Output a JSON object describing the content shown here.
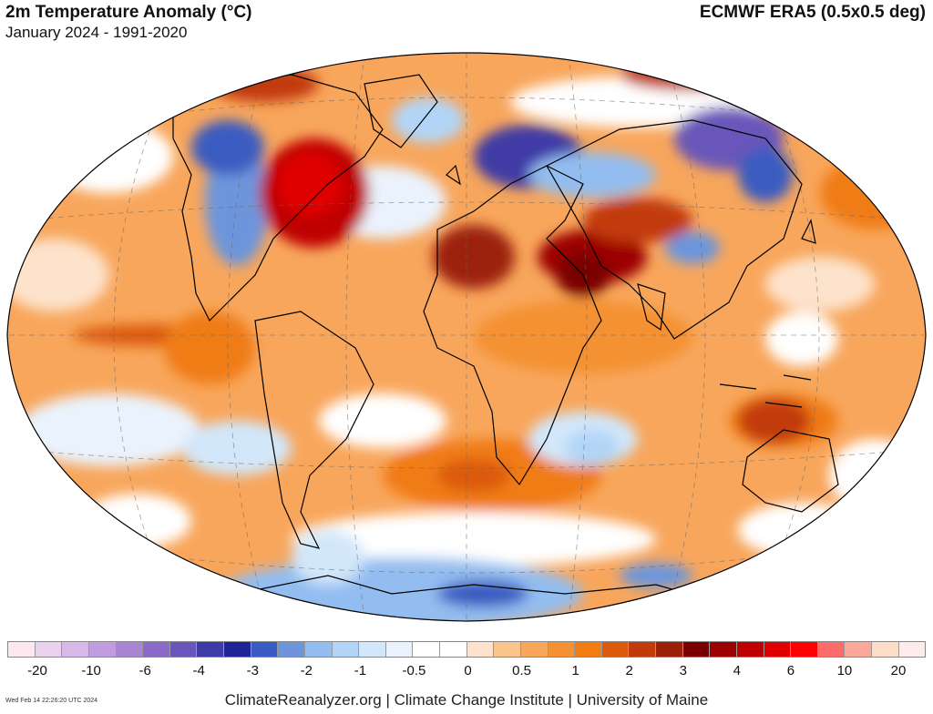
{
  "header": {
    "title": "2m Temperature Anomaly (°C)",
    "subtitle": "January 2024 - 1991-2020",
    "dataset": "ECMWF ERA5 (0.5x0.5 deg)"
  },
  "legend": {
    "colors": [
      "#fde8f0",
      "#ead2ee",
      "#d7b8e8",
      "#c29ce0",
      "#a985d6",
      "#8a6cc8",
      "#6956ba",
      "#3f3ba6",
      "#1f2393",
      "#3a5bc1",
      "#6d95db",
      "#93bdf0",
      "#b2d5f7",
      "#d2e7fa",
      "#eaf3fd",
      "#ffffff",
      "#ffffff",
      "#fde3cc",
      "#fbc48d",
      "#f8a65c",
      "#f49132",
      "#f07c12",
      "#dc5a0c",
      "#c23a0a",
      "#9c2008",
      "#7a0000",
      "#9c0000",
      "#bf0000",
      "#e00000",
      "#ff0000",
      "#ff6a6a",
      "#fda79a",
      "#fddcc8",
      "#fdecea"
    ],
    "tick_labels": [
      "-20",
      "-10",
      "-6",
      "-4",
      "-3",
      "-2",
      "-1",
      "-0.5",
      "0",
      "0.5",
      "1",
      "2",
      "3",
      "4",
      "6",
      "10",
      "20"
    ]
  },
  "map": {
    "projection": "Winkel Tripel",
    "ocean_base_color": "#f8a65c",
    "coastline_color": "#000000"
  },
  "footer": {
    "credit": "ClimateReanalyzer.org | Climate Change Institute | University of Maine",
    "timestamp": "Wed Feb 14 22:26:20 UTC 2024"
  }
}
